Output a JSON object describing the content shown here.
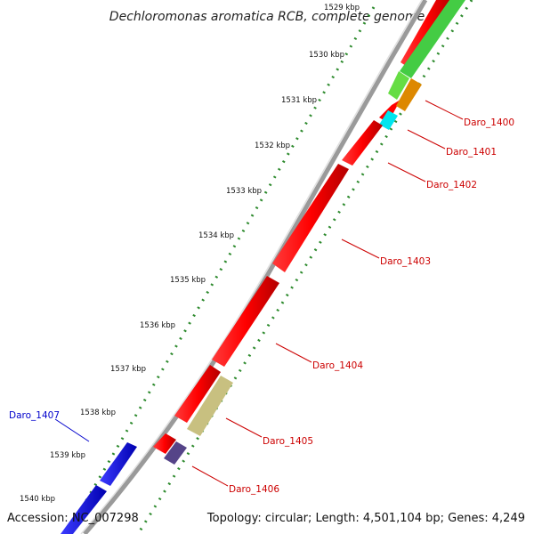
{
  "title": "Dechloromonas aromatica RCB, complete genome",
  "footer": {
    "accession": "Accession: NC_007298",
    "summary": "Topology: circular; Length: 4,501,104 bp; Genes: 4,249"
  },
  "kbp_labels": [
    "1529 kbp",
    "1530 kbp",
    "1531 kbp",
    "1532 kbp",
    "1533 kbp",
    "1534 kbp",
    "1535 kbp",
    "1536 kbp",
    "1537 kbp",
    "1538 kbp",
    "1539 kbp",
    "1540 kbp"
  ],
  "genes": [
    {
      "id": "Daro_1400",
      "color": "#e8e8e8"
    },
    {
      "id": "Daro_1401",
      "color": "#cc0000"
    },
    {
      "id": "Daro_1402",
      "color": "#cc0000"
    },
    {
      "id": "Daro_1403",
      "color": "#cc0000"
    },
    {
      "id": "Daro_1404",
      "color": "#cc0000"
    },
    {
      "id": "Daro_1405",
      "color": "#cc0000"
    },
    {
      "id": "Daro_1406",
      "color": "#cc0000"
    },
    {
      "id": "Daro_1407",
      "color": "#0000cc"
    }
  ],
  "colors": {
    "forward_gene": "#ff0000",
    "reverse_gene": "#0000ff",
    "green_feature": "#44cc44",
    "orange_feature": "#ee8800",
    "cyan_feature": "#00e5ee",
    "khaki_feature": "#c8c080",
    "slate_feature": "#554488",
    "tick_dots": "#2d8a2d",
    "backbone": "#9a9a9a"
  }
}
